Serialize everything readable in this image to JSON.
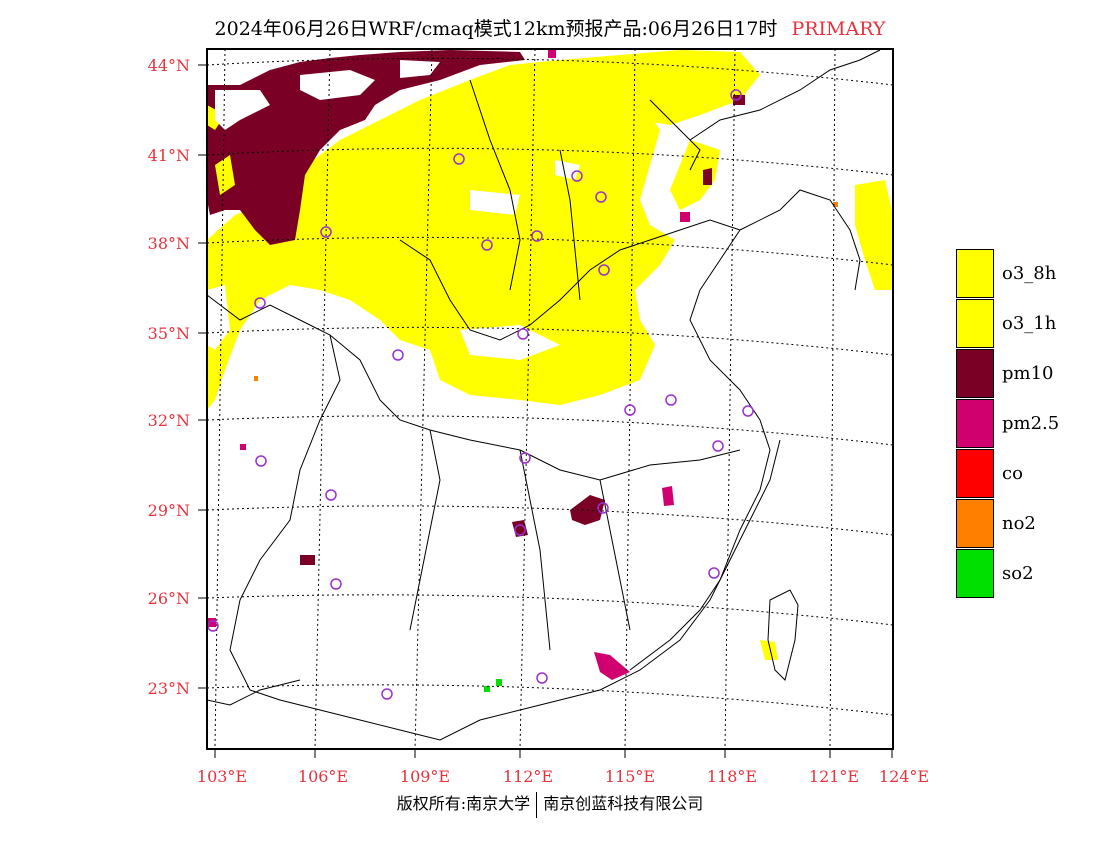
{
  "title": {
    "main": "2024年06月26日WRF/cmaq模式12km预报产品:06月26日17时",
    "tag": "PRIMARY"
  },
  "axes": {
    "lat_labels": [
      "44°N",
      "41°N",
      "38°N",
      "35°N",
      "32°N",
      "29°N",
      "26°N",
      "23°N"
    ],
    "lon_labels": [
      "103°E",
      "106°E",
      "109°E",
      "112°E",
      "115°E",
      "118°E",
      "121°E",
      "124°E"
    ]
  },
  "legend": [
    {
      "label": "o3_8h",
      "color": "#ffff00"
    },
    {
      "label": "o3_1h",
      "color": "#ffff00"
    },
    {
      "label": "pm10",
      "color": "#7a0026"
    },
    {
      "label": "pm2.5",
      "color": "#d0006f"
    },
    {
      "label": "co",
      "color": "#ff0000"
    },
    {
      "label": "no2",
      "color": "#ff8000"
    },
    {
      "label": "so2",
      "color": "#00e000"
    }
  ],
  "footer": {
    "left": "版权所有:南京大学",
    "right": "南京创蓝科技有限公司"
  }
}
